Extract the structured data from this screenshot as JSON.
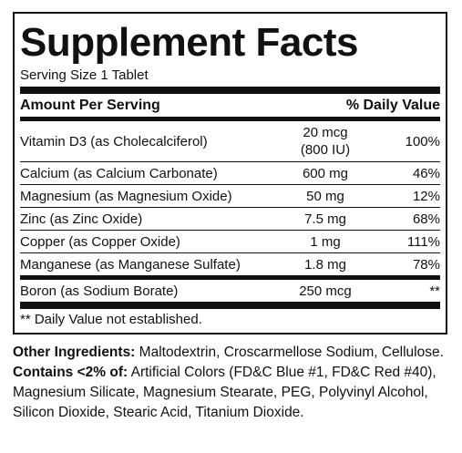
{
  "panel": {
    "title": "Supplement Facts",
    "serving_size": "Serving Size 1 Tablet",
    "header": {
      "amount_label": "Amount Per Serving",
      "dv_label": "% Daily Value"
    },
    "rows": [
      {
        "name": "Vitamin D3 (as Cholecalciferol)",
        "amount": "20 mcg",
        "amount_sub": "(800 IU)",
        "dv": "100%"
      },
      {
        "name": "Calcium (as Calcium Carbonate)",
        "amount": "600 mg",
        "dv": "46%"
      },
      {
        "name": "Magnesium (as Magnesium Oxide)",
        "amount": "50 mg",
        "dv": "12%"
      },
      {
        "name": "Zinc (as Zinc Oxide)",
        "amount": "7.5 mg",
        "dv": "68%"
      },
      {
        "name": "Copper (as Copper Oxide)",
        "amount": "1 mg",
        "dv": "111%"
      },
      {
        "name": "Manganese (as Manganese Sulfate)",
        "amount": "1.8 mg",
        "dv": "78%"
      },
      {
        "name": "Boron (as Sodium Borate)",
        "amount": "250 mcg",
        "dv": "**"
      }
    ],
    "footnote": "** Daily Value not established."
  },
  "ingredients": {
    "other_label": "Other Ingredients:",
    "other_text": " Maltodextrin, Croscarmellose Sodium, Cellulose. ",
    "contains_label": "Contains <2% of:",
    "contains_text": " Artificial Colors (FD&C Blue #1, FD&C Red #40), Magnesium Silicate, Magnesium Stearate, PEG, Polyvinyl Alcohol, Silicon Dioxide, Stearic Acid, Titanium Dioxide."
  }
}
